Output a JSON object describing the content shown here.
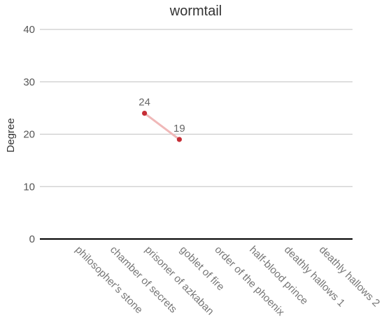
{
  "chart_data": {
    "type": "line",
    "title": "wormtail",
    "xlabel": "",
    "ylabel": "Degree",
    "categories": [
      "philosopher's stone",
      "chamber of secrets",
      "prisoner of azkaban",
      "goblet of fire",
      "order of the phoenix",
      "half-blood prince",
      "deathly hallows 1",
      "deathly hallows 2"
    ],
    "series": [
      {
        "values": [
          null,
          null,
          24,
          19,
          null,
          null,
          null,
          null
        ],
        "color": "#c62e36",
        "line_color": "#f0b8b8"
      }
    ],
    "ylim": [
      0,
      40
    ],
    "yticks": [
      0,
      10,
      20,
      30,
      40
    ],
    "grid": true,
    "legend": "none",
    "data_labels": true
  }
}
